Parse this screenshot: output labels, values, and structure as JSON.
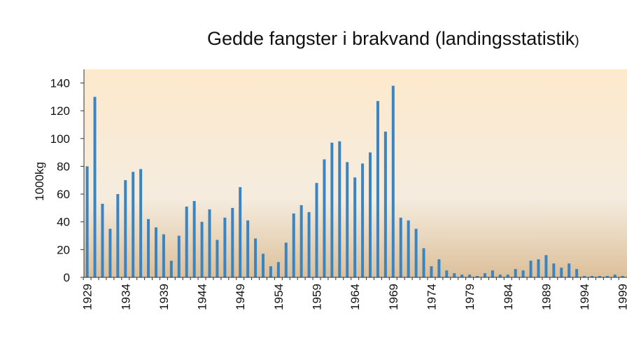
{
  "chart_data": {
    "type": "bar",
    "title_main": "Gedde fangster i brakvand (landingsstatistik",
    "title_tail": ")",
    "ylabel": "1000kg",
    "xlabel": "",
    "ylim": [
      0,
      150
    ],
    "yticks": [
      0,
      20,
      40,
      60,
      80,
      100,
      120,
      140
    ],
    "xtick_labels": [
      "1929",
      "1934",
      "1939",
      "1944",
      "1949",
      "1954",
      "1959",
      "1964",
      "1969",
      "1974",
      "1979",
      "1984",
      "1989",
      "1994",
      "1999"
    ],
    "x_start": 1929,
    "bar_color": "#3a84c1",
    "background_top": "#fde9cc",
    "background_mid": "#f5ecdf",
    "background_bottom": "#dcc09a",
    "values": [
      80,
      130,
      53,
      35,
      60,
      70,
      76,
      78,
      42,
      36,
      31,
      12,
      30,
      51,
      55,
      40,
      49,
      27,
      43,
      50,
      65,
      41,
      28,
      17,
      8,
      11,
      25,
      46,
      52,
      47,
      68,
      85,
      97,
      98,
      83,
      72,
      82,
      90,
      127,
      105,
      138,
      43,
      41,
      35,
      21,
      8,
      13,
      5,
      3,
      2,
      2,
      1,
      3,
      5,
      2,
      2,
      6,
      5,
      12,
      13,
      16,
      10,
      7,
      10,
      6,
      1,
      1,
      1,
      1,
      2,
      1
    ]
  }
}
